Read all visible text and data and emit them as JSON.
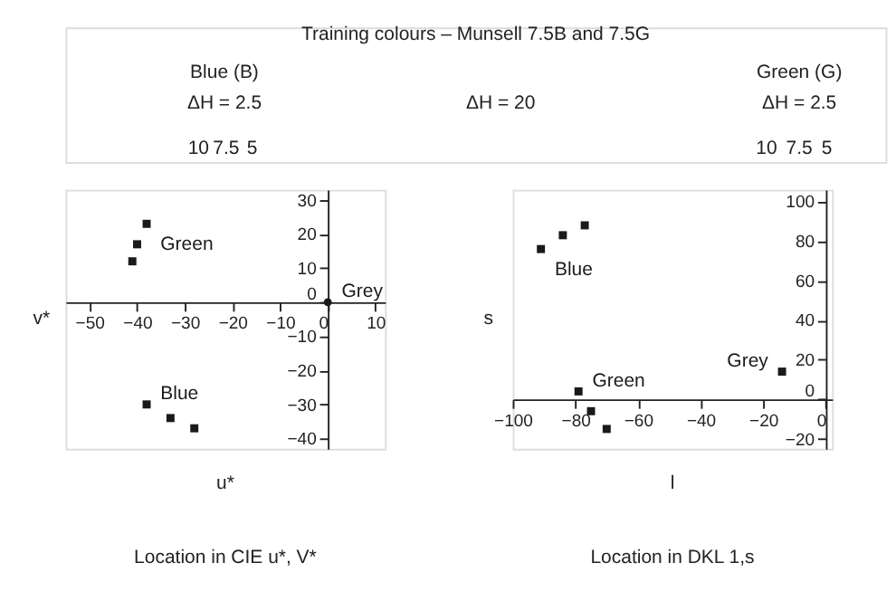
{
  "chart_data": [
    {
      "type": "other",
      "title": "Training colours – Munsell 7.5B and 7.5G",
      "annotations": [
        "Blue (B)",
        "ΔH = 2.5",
        "ΔH = 20",
        "Green (G)",
        "ΔH = 2.5",
        "10",
        "7.5",
        "5",
        "10",
        "7.5",
        "5"
      ]
    },
    {
      "type": "scatter",
      "title": "Location in CIE u*, V*",
      "xlabel": "u*",
      "ylabel": "v*",
      "marker": "square",
      "xlim": [
        -55,
        12
      ],
      "ylim": [
        -43,
        33
      ],
      "xticks": [
        -50,
        -40,
        -30,
        -20,
        -10,
        0,
        10
      ],
      "yticks": [
        -40,
        -30,
        -20,
        -10,
        0,
        10,
        20,
        30
      ],
      "series": [
        {
          "name": "Green",
          "color": "#1a1a1a",
          "x": [
            -38,
            -40,
            -41
          ],
          "values": [
            23,
            17,
            12
          ]
        },
        {
          "name": "Blue",
          "color": "#1a1a1a",
          "x": [
            -38,
            -33,
            -28
          ],
          "values": [
            -30,
            -34,
            -37
          ]
        },
        {
          "name": "Grey",
          "color": "#1a1a1a",
          "marker": "circle",
          "x": [
            0
          ],
          "values": [
            0
          ]
        }
      ]
    },
    {
      "type": "scatter",
      "title": "Location in DKL 1,s",
      "xlabel": "l",
      "ylabel": "s",
      "marker": "square",
      "xlim": [
        -100,
        2
      ],
      "ylim": [
        -25,
        106
      ],
      "xticks": [
        -100,
        -80,
        -60,
        -40,
        -20,
        0
      ],
      "yticks": [
        -20,
        0,
        20,
        40,
        60,
        80,
        100
      ],
      "series": [
        {
          "name": "Blue",
          "color": "#1a1a1a",
          "x": [
            -91,
            -84,
            -77
          ],
          "values": [
            76,
            83,
            88
          ]
        },
        {
          "name": "Green",
          "color": "#1a1a1a",
          "x": [
            -79,
            -75,
            -70
          ],
          "values": [
            4,
            -6,
            -15
          ]
        },
        {
          "name": "Grey",
          "color": "#1a1a1a",
          "x": [
            -14
          ],
          "values": [
            14
          ]
        }
      ]
    }
  ]
}
